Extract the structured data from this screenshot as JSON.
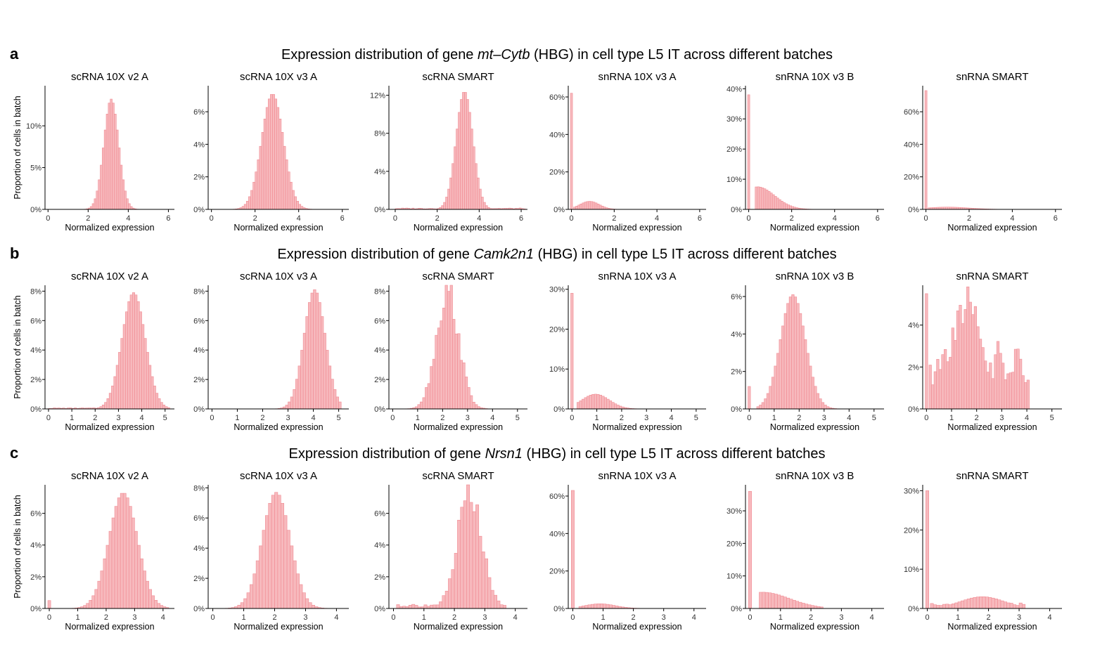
{
  "figure": {
    "y_axis_label": "Proportion of cells in batch",
    "x_axis_label": "Normalized expression",
    "bar_fill": "#f7b9bd",
    "bar_stroke": "#f08a92"
  },
  "rows": [
    {
      "letter": "a",
      "title_prefix": "Expression distribution of gene ",
      "gene": "mt–Cytb",
      "title_suffix": " (HBG) in cell type L5 IT across different batches"
    },
    {
      "letter": "b",
      "title_prefix": "Expression distribution of gene ",
      "gene": "Camk2n1",
      "title_suffix": " (HBG) in cell type L5 IT across different batches"
    },
    {
      "letter": "c",
      "title_prefix": "Expression distribution of gene ",
      "gene": "Nrsn1",
      "title_suffix": " (HBG) in cell type L5 IT across different batches"
    }
  ],
  "chart_data": [
    {
      "type": "bar",
      "row": "a",
      "title": "scRNA 10X v2 A",
      "xlabel": "Normalized expression",
      "ylabel": "Proportion of cells in batch",
      "xlim": [
        -0.15,
        6.3
      ],
      "ylim": [
        0,
        0.148
      ],
      "xticks": [
        0,
        2,
        4,
        6
      ],
      "yticks": [
        0,
        0.05,
        0.1
      ],
      "yticklabels": [
        "0%",
        "5%",
        "10%"
      ],
      "bars": {
        "kind": "normal",
        "mean": 3.15,
        "sd": 0.37,
        "peak": 0.132,
        "start": 0,
        "end": 5.8,
        "width": 0.1
      }
    },
    {
      "type": "bar",
      "row": "a",
      "title": "scRNA 10X v3 A",
      "xlabel": "Normalized expression",
      "ylabel": "",
      "xlim": [
        -0.15,
        6.3
      ],
      "ylim": [
        0,
        0.076
      ],
      "xticks": [
        0,
        2,
        4,
        6
      ],
      "yticks": [
        0,
        0.02,
        0.04,
        0.06
      ],
      "yticklabels": [
        "0%",
        "2%",
        "4%",
        "6%"
      ],
      "bars": {
        "kind": "normal",
        "mean": 2.8,
        "sd": 0.5,
        "peak": 0.071,
        "start": 0.5,
        "end": 5.2,
        "width": 0.1
      }
    },
    {
      "type": "bar",
      "row": "a",
      "title": "scRNA SMART",
      "xlabel": "Normalized expression",
      "ylabel": "",
      "xlim": [
        -0.3,
        6.3
      ],
      "ylim": [
        0,
        0.13
      ],
      "xticks": [
        0,
        2,
        4,
        6
      ],
      "yticks": [
        0,
        0.04,
        0.08,
        0.12
      ],
      "yticklabels": [
        "0%",
        "4%",
        "8%",
        "12%"
      ],
      "bars": {
        "kind": "normal",
        "mean": 3.3,
        "sd": 0.4,
        "peak": 0.124,
        "start": 0,
        "end": 6.2,
        "width": 0.1,
        "floor": 0.001
      }
    },
    {
      "type": "bar",
      "row": "a",
      "title": "snRNA 10X v3 A",
      "xlabel": "Normalized expression",
      "ylabel": "",
      "xlim": [
        -0.15,
        6.3
      ],
      "ylim": [
        0,
        0.66
      ],
      "xticks": [
        0,
        2,
        4,
        6
      ],
      "yticks": [
        0,
        0.2,
        0.4,
        0.6
      ],
      "yticklabels": [
        "0%",
        "20%",
        "40%",
        "60%"
      ],
      "bars": {
        "kind": "zero_spike",
        "spike": 0.62,
        "mean": 0.85,
        "sd": 0.45,
        "peak": 0.043,
        "start": 0.1,
        "end": 5.1,
        "width": 0.1
      }
    },
    {
      "type": "bar",
      "row": "a",
      "title": "snRNA 10X v3 B",
      "xlabel": "Normalized expression",
      "ylabel": "",
      "xlim": [
        -0.15,
        6.3
      ],
      "ylim": [
        0,
        0.41
      ],
      "xticks": [
        0,
        2,
        4,
        6
      ],
      "yticks": [
        0,
        0.1,
        0.2,
        0.3,
        0.4
      ],
      "yticklabels": [
        "0%",
        "10%",
        "20%",
        "30%",
        "40%"
      ],
      "bars": {
        "kind": "zero_spike",
        "spike": 0.38,
        "mean": 0.4,
        "sd": 0.45,
        "peak": 0.075,
        "start": 0.3,
        "end": 3.0,
        "width": 0.1,
        "skew": true
      }
    },
    {
      "type": "bar",
      "row": "a",
      "title": "snRNA SMART",
      "xlabel": "Normalized expression",
      "ylabel": "",
      "xlim": [
        -0.15,
        6.3
      ],
      "ylim": [
        0,
        0.76
      ],
      "xticks": [
        0,
        2,
        4,
        6
      ],
      "yticks": [
        0,
        0.2,
        0.4,
        0.6
      ],
      "yticklabels": [
        "0%",
        "20%",
        "40%",
        "60%"
      ],
      "bars": {
        "kind": "zero_spike",
        "spike": 0.73,
        "mean": 1.0,
        "sd": 1.0,
        "peak": 0.014,
        "start": 0.1,
        "end": 3.6,
        "width": 0.1
      }
    },
    {
      "type": "bar",
      "row": "b",
      "title": "scRNA 10X v2 A",
      "xlabel": "Normalized expression",
      "ylabel": "Proportion of cells in batch",
      "xlim": [
        -0.15,
        5.4
      ],
      "ylim": [
        0,
        0.084
      ],
      "xticks": [
        0,
        1,
        2,
        3,
        4,
        5
      ],
      "yticks": [
        0,
        0.02,
        0.04,
        0.06,
        0.08
      ],
      "yticklabels": [
        "0%",
        "2%",
        "4%",
        "6%",
        "8%"
      ],
      "bars": {
        "kind": "normal",
        "mean": 3.65,
        "sd": 0.5,
        "peak": 0.079,
        "start": 0,
        "end": 5.2,
        "width": 0.1,
        "floor": 0.0005
      }
    },
    {
      "type": "bar",
      "row": "b",
      "title": "scRNA 10X v3 A",
      "xlabel": "Normalized expression",
      "ylabel": "",
      "xlim": [
        -0.15,
        5.4
      ],
      "ylim": [
        0,
        0.084
      ],
      "xticks": [
        0,
        1,
        2,
        3,
        4,
        5
      ],
      "yticks": [
        0,
        0.02,
        0.04,
        0.06,
        0.08
      ],
      "yticklabels": [
        "0%",
        "2%",
        "4%",
        "6%",
        "8%"
      ],
      "bars": {
        "kind": "normal",
        "mean": 4.05,
        "sd": 0.42,
        "peak": 0.081,
        "start": 1.1,
        "end": 5.1,
        "width": 0.1
      }
    },
    {
      "type": "bar",
      "row": "b",
      "title": "scRNA SMART",
      "xlabel": "Normalized expression",
      "ylabel": "",
      "xlim": [
        -0.15,
        5.4
      ],
      "ylim": [
        0,
        0.084
      ],
      "xticks": [
        0,
        1,
        2,
        3,
        4,
        5
      ],
      "yticks": [
        0,
        0.02,
        0.04,
        0.06,
        0.08
      ],
      "yticklabels": [
        "0%",
        "2%",
        "4%",
        "6%",
        "8%"
      ],
      "bars": {
        "kind": "normal",
        "mean": 2.2,
        "sd": 0.45,
        "peak": 0.08,
        "start": 0.2,
        "end": 4.4,
        "width": 0.1,
        "jitter": 0.15
      }
    },
    {
      "type": "bar",
      "row": "b",
      "title": "snRNA 10X v3 A",
      "xlabel": "Normalized expression",
      "ylabel": "",
      "xlim": [
        -0.15,
        5.4
      ],
      "ylim": [
        0,
        0.31
      ],
      "xticks": [
        0,
        1,
        2,
        3,
        4,
        5
      ],
      "yticks": [
        0,
        0.1,
        0.2,
        0.3
      ],
      "yticklabels": [
        "0%",
        "10%",
        "20%",
        "30%"
      ],
      "bars": {
        "kind": "zero_spike",
        "spike": 0.29,
        "mean": 0.95,
        "sd": 0.55,
        "peak": 0.037,
        "start": 0.2,
        "end": 3.0,
        "width": 0.1
      }
    },
    {
      "type": "bar",
      "row": "b",
      "title": "snRNA 10X v3 B",
      "xlabel": "Normalized expression",
      "ylabel": "",
      "xlim": [
        -0.15,
        5.4
      ],
      "ylim": [
        0,
        0.066
      ],
      "xticks": [
        0,
        1,
        2,
        3,
        4,
        5
      ],
      "yticks": [
        0,
        0.02,
        0.04,
        0.06
      ],
      "yticklabels": [
        "0%",
        "2%",
        "4%",
        "6%"
      ],
      "bars": {
        "kind": "zero_spike",
        "spike": 0.012,
        "mean": 1.75,
        "sd": 0.5,
        "peak": 0.061,
        "start": 0.3,
        "end": 4.0,
        "width": 0.1
      }
    },
    {
      "type": "bar",
      "row": "b",
      "title": "snRNA SMART",
      "xlabel": "Normalized expression",
      "ylabel": "",
      "xlim": [
        -0.15,
        5.4
      ],
      "ylim": [
        0,
        0.059
      ],
      "xticks": [
        0,
        1,
        2,
        3,
        4,
        5
      ],
      "yticks": [
        0,
        0.02,
        0.04
      ],
      "yticklabels": [
        "0%",
        "2%",
        "4%"
      ],
      "bars": {
        "kind": "zero_spike",
        "spike": 0.055,
        "mean": 1.5,
        "sd": 0.7,
        "peak": 0.047,
        "start": 0.1,
        "end": 4.1,
        "width": 0.1,
        "jitter": 0.3,
        "floor": 0.02
      }
    },
    {
      "type": "bar",
      "row": "c",
      "title": "scRNA 10X v2 A",
      "xlabel": "Normalized expression",
      "ylabel": "Proportion of cells in batch",
      "xlim": [
        -0.15,
        4.4
      ],
      "ylim": [
        0,
        0.078
      ],
      "xticks": [
        0,
        1,
        2,
        3,
        4
      ],
      "yticks": [
        0,
        0.02,
        0.04,
        0.06
      ],
      "yticklabels": [
        "0%",
        "2%",
        "4%",
        "6%"
      ],
      "bars": {
        "kind": "zero_spike",
        "spike": 0.005,
        "mean": 2.6,
        "sd": 0.5,
        "peak": 0.073,
        "start": 0.1,
        "end": 4.2,
        "width": 0.1
      }
    },
    {
      "type": "bar",
      "row": "c",
      "title": "scRNA 10X v3 A",
      "xlabel": "Normalized expression",
      "ylabel": "",
      "xlim": [
        -0.15,
        4.4
      ],
      "ylim": [
        0,
        0.082
      ],
      "xticks": [
        0,
        1,
        2,
        3,
        4
      ],
      "yticks": [
        0,
        0.02,
        0.04,
        0.06,
        0.08
      ],
      "yticklabels": [
        "0%",
        "2%",
        "4%",
        "6%",
        "8%"
      ],
      "bars": {
        "kind": "normal",
        "mean": 2.05,
        "sd": 0.45,
        "peak": 0.077,
        "start": 0,
        "end": 3.9,
        "width": 0.1
      }
    },
    {
      "type": "bar",
      "row": "c",
      "title": "scRNA SMART",
      "xlabel": "Normalized expression",
      "ylabel": "",
      "xlim": [
        -0.15,
        4.4
      ],
      "ylim": [
        0,
        0.078
      ],
      "xticks": [
        0,
        1,
        2,
        3,
        4
      ],
      "yticks": [
        0,
        0.02,
        0.04,
        0.06
      ],
      "yticklabels": [
        "0%",
        "2%",
        "4%",
        "6%"
      ],
      "bars": {
        "kind": "normal",
        "mean": 2.5,
        "sd": 0.4,
        "peak": 0.072,
        "start": 0.1,
        "end": 3.7,
        "width": 0.1,
        "jitter": 0.15,
        "floor": 0.002
      }
    },
    {
      "type": "bar",
      "row": "c",
      "title": "snRNA 10X v3 A",
      "xlabel": "Normalized expression",
      "ylabel": "",
      "xlim": [
        -0.15,
        4.4
      ],
      "ylim": [
        0,
        0.66
      ],
      "xticks": [
        0,
        1,
        2,
        3,
        4
      ],
      "yticks": [
        0,
        0.2,
        0.4,
        0.6
      ],
      "yticklabels": [
        "0%",
        "20%",
        "40%",
        "60%"
      ],
      "bars": {
        "kind": "zero_spike",
        "spike": 0.63,
        "mean": 0.9,
        "sd": 0.5,
        "peak": 0.025,
        "start": 0.2,
        "end": 2.6,
        "width": 0.1
      }
    },
    {
      "type": "bar",
      "row": "c",
      "title": "snRNA 10X v3 B",
      "xlabel": "Normalized expression",
      "ylabel": "",
      "xlim": [
        -0.15,
        4.4
      ],
      "ylim": [
        0,
        0.38
      ],
      "xticks": [
        0,
        1,
        2,
        3,
        4
      ],
      "yticks": [
        0,
        0.1,
        0.2,
        0.3
      ],
      "yticklabels": [
        "0%",
        "10%",
        "20%",
        "30%"
      ],
      "bars": {
        "kind": "zero_spike",
        "spike": 0.36,
        "mean": 0.4,
        "sd": 0.5,
        "peak": 0.05,
        "start": 0.3,
        "end": 2.4,
        "width": 0.1,
        "skew": true
      }
    },
    {
      "type": "bar",
      "row": "c",
      "title": "snRNA SMART",
      "xlabel": "Normalized expression",
      "ylabel": "",
      "xlim": [
        -0.15,
        4.4
      ],
      "ylim": [
        0,
        0.315
      ],
      "xticks": [
        0,
        1,
        2,
        3,
        4
      ],
      "yticks": [
        0,
        0.1,
        0.2,
        0.3
      ],
      "yticklabels": [
        "0%",
        "10%",
        "20%",
        "30%"
      ],
      "bars": {
        "kind": "zero_spike",
        "spike": 0.3,
        "mean": 1.8,
        "sd": 0.7,
        "peak": 0.03,
        "start": 0.1,
        "end": 3.2,
        "width": 0.1,
        "floor": 0.01
      }
    }
  ]
}
